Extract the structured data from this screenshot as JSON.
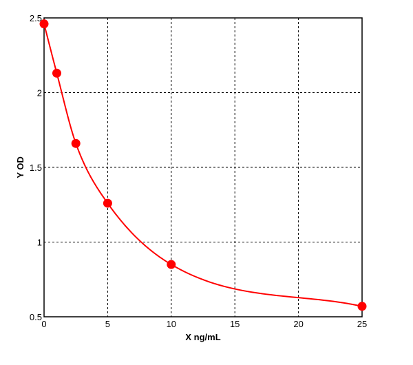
{
  "chart_data": {
    "type": "scatter",
    "xlabel": "X ng/mL",
    "ylabel": "Y OD",
    "xlim": [
      0,
      25
    ],
    "ylim": [
      0.5,
      2.5
    ],
    "xticks": [
      "0",
      "5",
      "10",
      "15",
      "20",
      "25"
    ],
    "yticks": [
      "0.5",
      "1",
      "1.5",
      "2",
      "2.5"
    ],
    "grid": true,
    "grid_style": "dashed",
    "fit_curve": true,
    "color": "#ff0000",
    "series": [
      {
        "x": [
          0,
          1,
          2.5,
          5,
          10,
          25
        ],
        "y": [
          2.46,
          2.13,
          1.66,
          1.26,
          0.85,
          0.57
        ]
      }
    ]
  }
}
